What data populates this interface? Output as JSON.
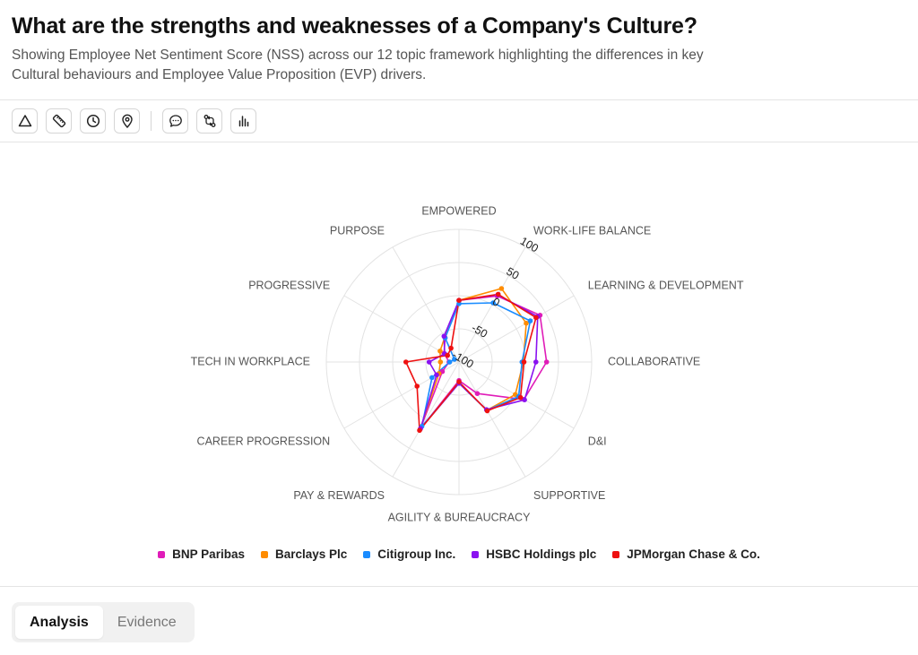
{
  "header": {
    "title": "What are the strengths and weaknesses of a Company's Culture?",
    "subtitle": "Showing Employee Net Sentiment Score (NSS) across our 12 topic framework highlighting the differences in key Cultural behaviours and Employee Value Proposition (EVP) drivers."
  },
  "toolbar": {
    "tools": [
      {
        "name": "triangle-tool",
        "icon": "triangle-icon"
      },
      {
        "name": "ruler-tool",
        "icon": "ruler-icon"
      },
      {
        "name": "clock-tool",
        "icon": "clock-icon"
      },
      {
        "name": "location-tool",
        "icon": "map-pin-icon"
      },
      {
        "name": "comment-tool",
        "icon": "chat-bubble-icon"
      },
      {
        "name": "compare-tool",
        "icon": "git-compare-icon"
      },
      {
        "name": "bar-chart-tool",
        "icon": "bar-chart-icon"
      }
    ]
  },
  "chart_data": {
    "type": "radar",
    "title": "",
    "categories": [
      "EMPOWERED",
      "WORK-LIFE BALANCE",
      "LEARNING & DEVELOPMENT",
      "COLLABORATIVE",
      "D&I",
      "SUPPORTIVE",
      "AGILITY & BUREAUCRACY",
      "PAY & REWARDS",
      "CAREER PROGRESSION",
      "TECH IN WORKPLACE",
      "PROGRESSIVE",
      "PURPOSE"
    ],
    "rlim": [
      -100,
      100
    ],
    "ticks": [
      {
        "value": -100,
        "label": "-100"
      },
      {
        "value": -50,
        "label": "-50"
      },
      {
        "value": 0,
        "label": "0"
      },
      {
        "value": 50,
        "label": "50"
      },
      {
        "value": 100,
        "label": "100"
      }
    ],
    "grid": true,
    "legend_position": "bottom",
    "series": [
      {
        "name": "BNP Paribas",
        "color": "#e01cb8",
        "values": [
          -7,
          15,
          41,
          32,
          13,
          -45,
          -72,
          17,
          -71,
          -85,
          -74,
          -58
        ]
      },
      {
        "name": "Barclays Plc",
        "color": "#ff8c00",
        "values": [
          -7,
          28,
          17,
          -3,
          -2,
          -16,
          -68,
          17,
          -65,
          -72,
          -67,
          -57
        ]
      },
      {
        "name": "Citigroup Inc.",
        "color": "#1a8cff",
        "values": [
          -12,
          3,
          24,
          -5,
          4,
          -16,
          -68,
          12,
          -53,
          -86,
          -92,
          -58
        ]
      },
      {
        "name": "HSBC Holdings plc",
        "color": "#8a12f0",
        "values": [
          -7,
          17,
          37,
          16,
          14,
          -17,
          -68,
          16,
          -61,
          -55,
          -75,
          -55
        ]
      },
      {
        "name": "JPMorgan Chase & Co.",
        "color": "#ee1111",
        "values": [
          -7,
          18,
          34,
          -2,
          7,
          -15,
          -70,
          19,
          -27,
          -20,
          -80,
          -76
        ]
      }
    ]
  },
  "tabs": [
    {
      "label": "Analysis",
      "active": true
    },
    {
      "label": "Evidence",
      "active": false
    }
  ]
}
